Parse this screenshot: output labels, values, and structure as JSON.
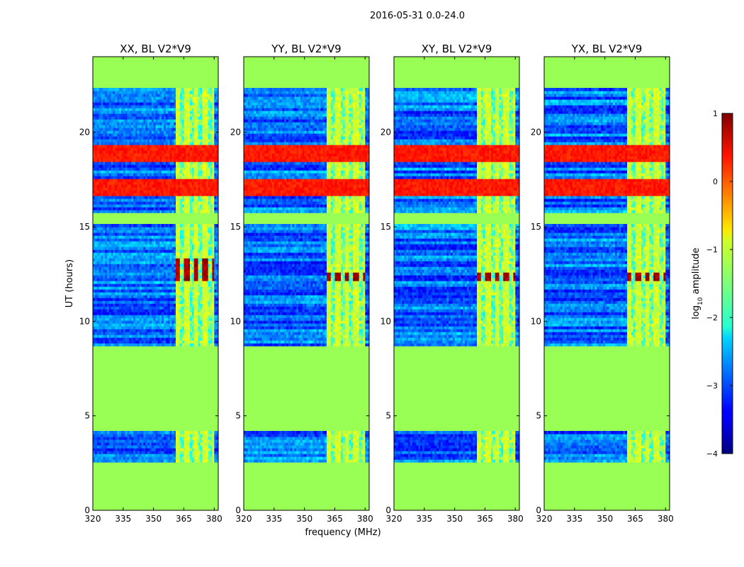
{
  "chart_data": {
    "type": "heatmap",
    "suptitle": "2016-05-31 0.0-24.0",
    "xlabel": "frequency (MHz)",
    "ylabel": "UT (hours)",
    "xlim": [
      320,
      382
    ],
    "ylim": [
      0,
      24
    ],
    "xticks": [
      320,
      335,
      350,
      365,
      380
    ],
    "yticks": [
      0,
      5,
      10,
      15,
      20
    ],
    "panels": [
      {
        "title": "XX, BL V2*V9",
        "peak_band": [
          12.1,
          13.3
        ]
      },
      {
        "title": "YY, BL V2*V9",
        "peak_band": [
          12.1,
          12.6
        ]
      },
      {
        "title": "XY, BL V2*V9",
        "peak_band": [
          12.2,
          12.6
        ]
      },
      {
        "title": "YX, BL V2*V9",
        "peak_band": [
          12.1,
          12.6
        ]
      }
    ],
    "data_segments_hours": [
      [
        2.6,
        4.2
      ],
      [
        8.7,
        15.1
      ],
      [
        15.7,
        22.3
      ]
    ],
    "rfi_band_mhz": [
      361,
      380
    ],
    "rfi_channels_mhz": [
      364,
      369,
      373,
      378
    ],
    "strong_rows_hours": [
      16.8,
      17.2,
      17.4,
      18.6,
      19.0,
      19.2
    ],
    "colorbar": {
      "label": "log10 amplitude",
      "label_base": "log",
      "label_sub": "10",
      "label_rest": " amplitude",
      "range": [
        -4,
        1
      ],
      "ticks": [
        1,
        0,
        -1,
        -2,
        -3,
        -4
      ],
      "tick_labels": [
        "1",
        "0",
        "−1",
        "−2",
        "−3",
        "−4"
      ],
      "colormap": "jet",
      "masked_value": -1.3,
      "masked_color": "#99ff55"
    }
  }
}
